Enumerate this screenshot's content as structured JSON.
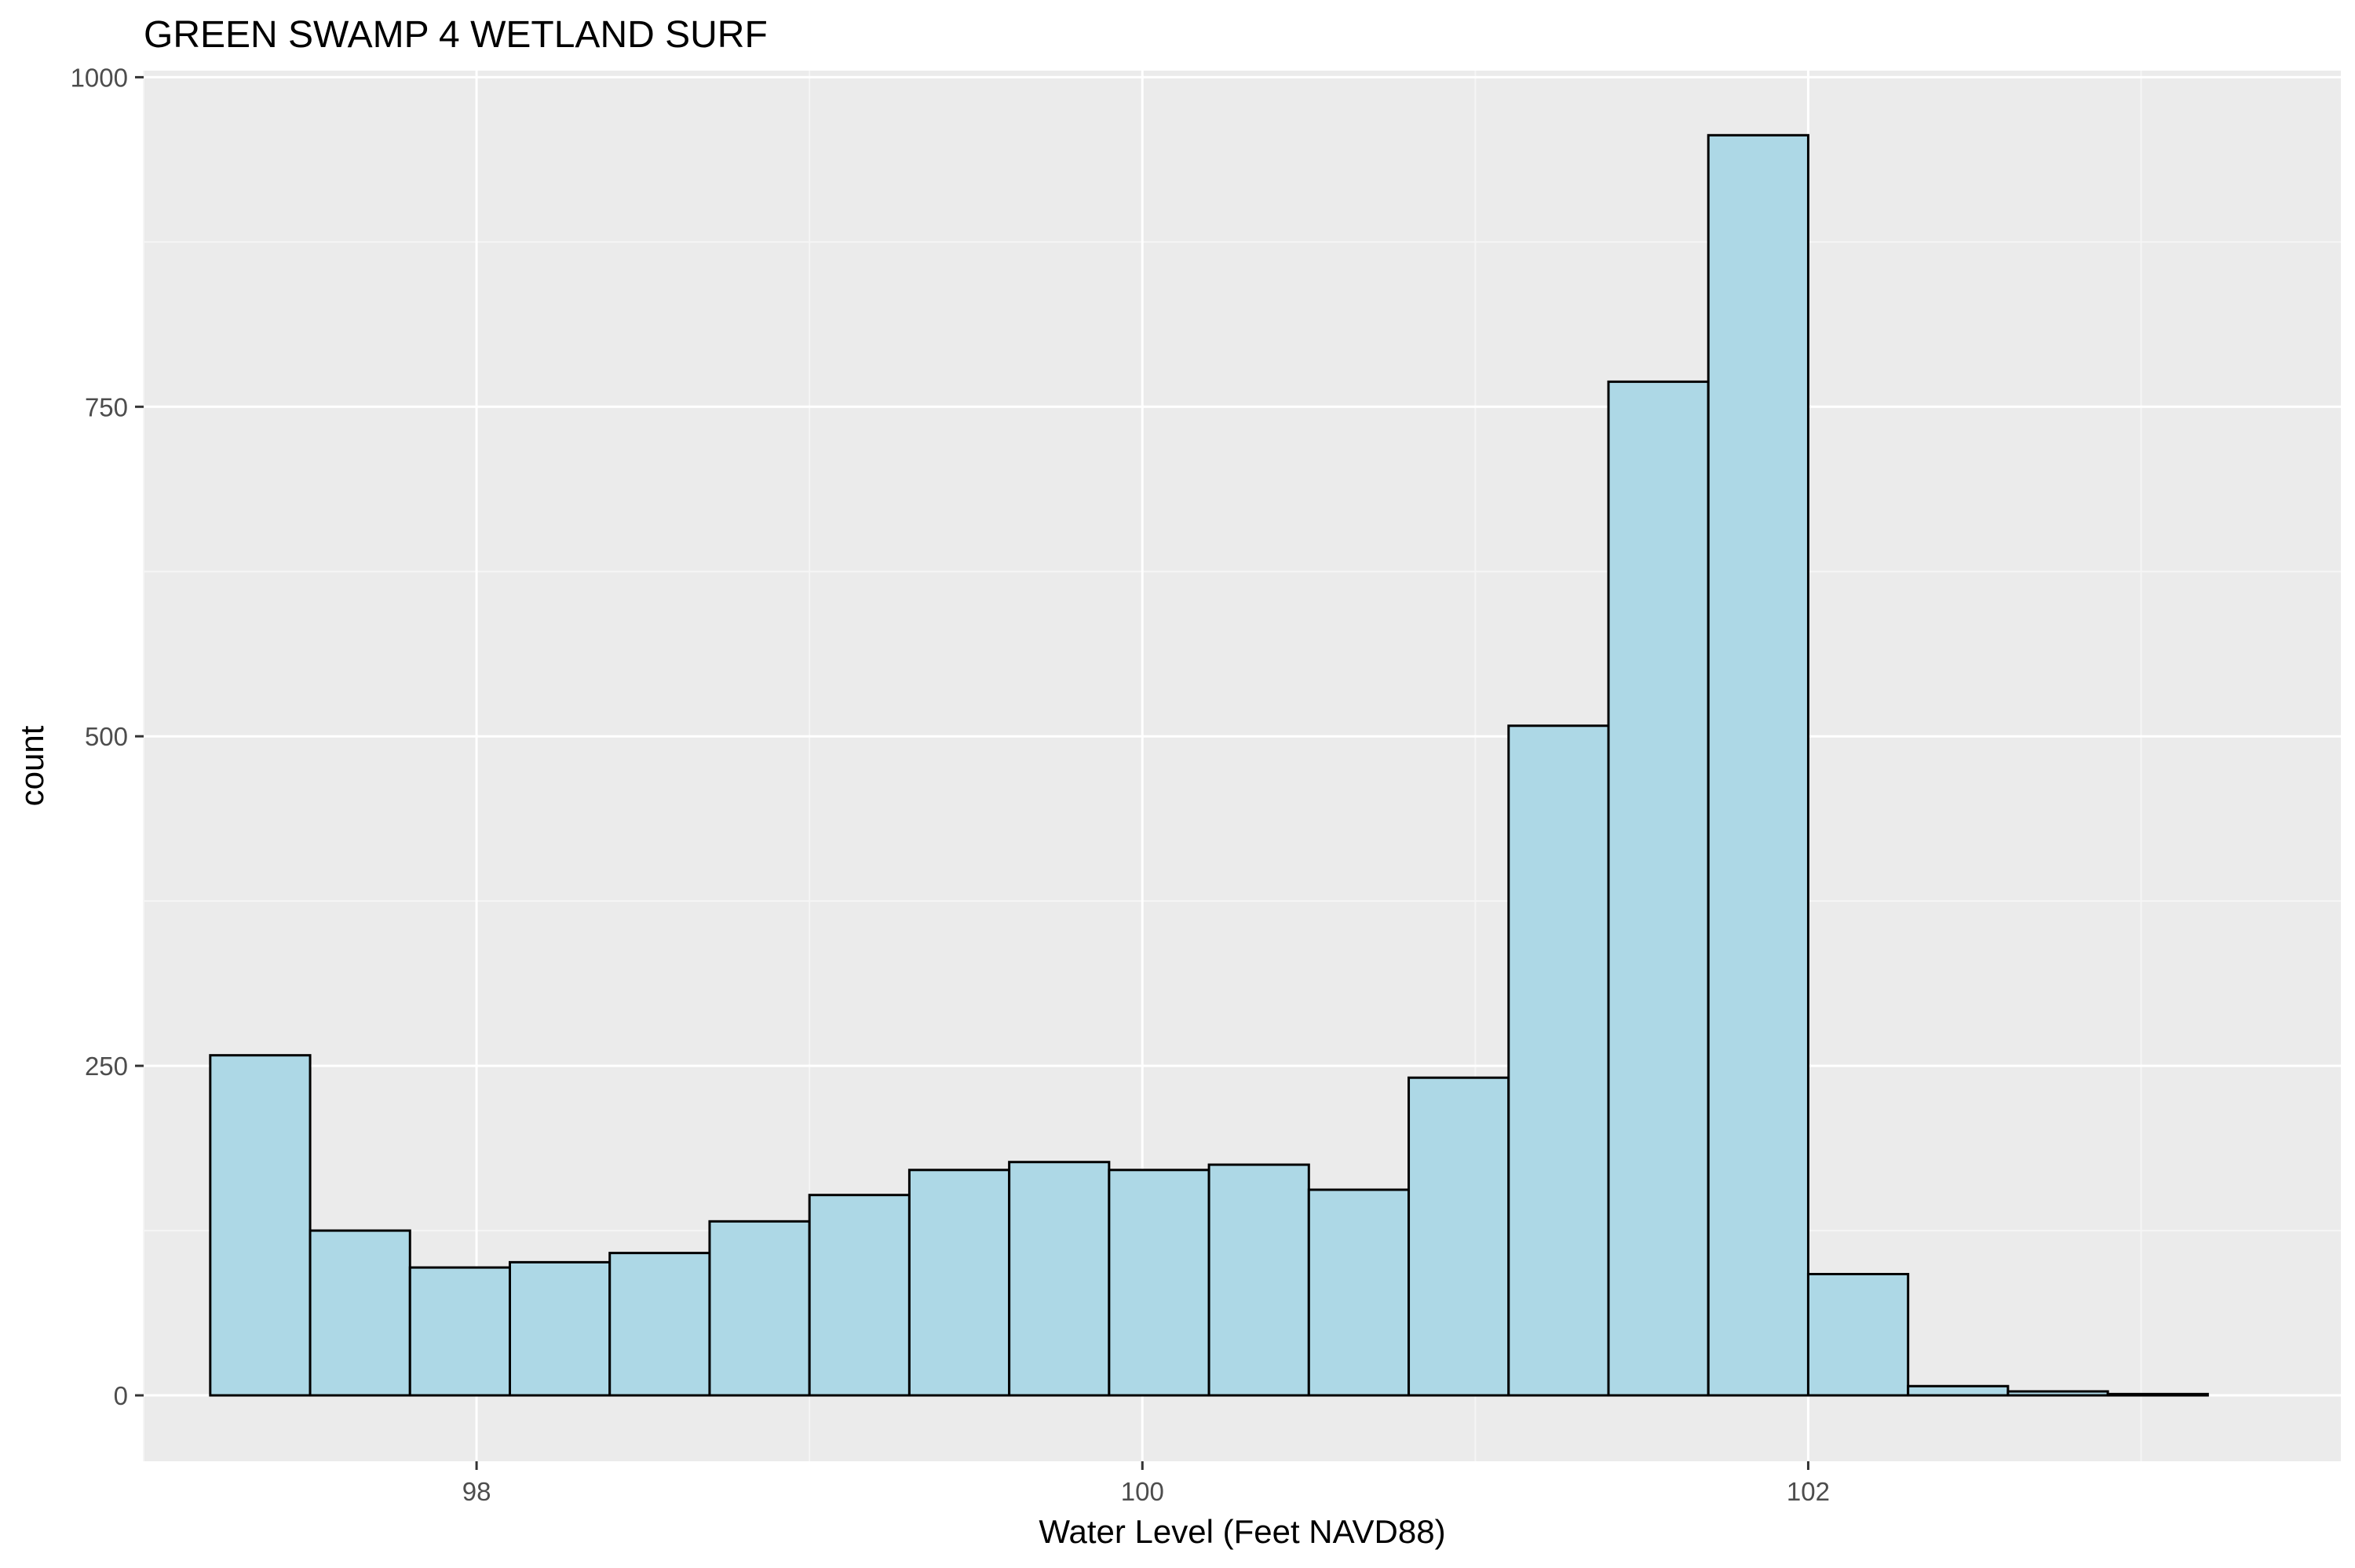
{
  "chart_data": {
    "type": "bar",
    "title": "GREEN SWAMP 4 WETLAND SURF",
    "xlabel": "Water Level (Feet NAVD88)",
    "ylabel": "count",
    "xlim": [
      97.0,
      103.6
    ],
    "ylim": [
      -50,
      1005
    ],
    "x_ticks": [
      98,
      100,
      102
    ],
    "y_ticks": [
      0,
      250,
      500,
      750,
      1000
    ],
    "grid": true,
    "bin_edges": [
      97.2,
      97.5,
      97.8,
      98.1,
      98.4,
      98.7,
      99.0,
      99.3,
      99.6,
      99.9,
      100.2,
      100.5,
      100.8,
      101.1,
      101.4,
      101.7,
      102.0,
      102.3,
      102.6,
      102.9,
      103.2
    ],
    "values": [
      258,
      125,
      97,
      101,
      108,
      132,
      152,
      171,
      177,
      171,
      175,
      156,
      241,
      508,
      769,
      956,
      92,
      7,
      3,
      1
    ],
    "colors": {
      "fill": "#add8e6",
      "stroke": "#000000",
      "panel": "#ebebeb",
      "grid_major": "#ffffff",
      "grid_minor": "#f5f5f5",
      "tick_text": "#4d4d4d",
      "tick_mark": "#333333"
    }
  }
}
